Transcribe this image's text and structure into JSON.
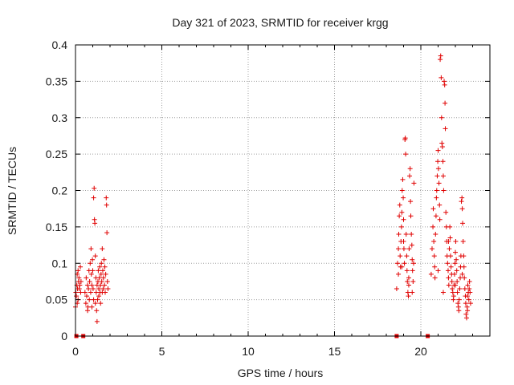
{
  "chart_data": {
    "type": "scatter",
    "title": "Day 321 of 2023, SRMTID for receiver krgg",
    "xlabel": "GPS time / hours",
    "ylabel": "SRMTID / TECUs",
    "xlim": [
      0,
      24
    ],
    "ylim": [
      0,
      0.4
    ],
    "xticks": [
      0,
      5,
      10,
      15,
      20
    ],
    "xtick_labels": [
      "0",
      "5",
      "10",
      "15",
      "20"
    ],
    "yticks": [
      0,
      0.05,
      0.1,
      0.15,
      0.2,
      0.25,
      0.3,
      0.35,
      0.4
    ],
    "ytick_labels": [
      "0",
      "0.05",
      "0.1",
      "0.15",
      "0.2",
      "0.25",
      "0.3",
      "0.35",
      "0.4"
    ],
    "grid": true,
    "marker": "+",
    "color": "#e00000",
    "series": [
      {
        "name": "krgg",
        "points": [
          [
            0.0,
            0.04
          ],
          [
            0.02,
            0.06
          ],
          [
            0.05,
            0.055
          ],
          [
            0.08,
            0.07
          ],
          [
            0.1,
            0.085
          ],
          [
            0.12,
            0.065
          ],
          [
            0.15,
            0.09
          ],
          [
            0.18,
            0.075
          ],
          [
            0.2,
            0.08
          ],
          [
            0.22,
            0.065
          ],
          [
            0.25,
            0.07
          ],
          [
            0.28,
            0.095
          ],
          [
            0.3,
            0.06
          ],
          [
            0.32,
            0.075
          ],
          [
            0.1,
            0.045
          ],
          [
            0.15,
            0.05
          ],
          [
            0.55,
            0.06
          ],
          [
            0.6,
            0.045
          ],
          [
            0.62,
            0.08
          ],
          [
            0.65,
            0.055
          ],
          [
            0.7,
            0.07
          ],
          [
            0.72,
            0.04
          ],
          [
            0.75,
            0.065
          ],
          [
            0.78,
            0.09
          ],
          [
            0.8,
            0.05
          ],
          [
            0.82,
            0.075
          ],
          [
            0.85,
            0.1
          ],
          [
            0.88,
            0.06
          ],
          [
            0.9,
            0.12
          ],
          [
            0.92,
            0.085
          ],
          [
            0.95,
            0.07
          ],
          [
            0.98,
            0.105
          ],
          [
            1.0,
            0.09
          ],
          [
            1.02,
            0.065
          ],
          [
            1.05,
            0.19
          ],
          [
            1.08,
            0.203
          ],
          [
            1.1,
            0.16
          ],
          [
            1.12,
            0.155
          ],
          [
            1.15,
            0.11
          ],
          [
            1.18,
            0.08
          ],
          [
            1.2,
            0.06
          ],
          [
            1.22,
            0.035
          ],
          [
            1.25,
            0.02
          ],
          [
            1.28,
            0.05
          ],
          [
            1.3,
            0.075
          ],
          [
            1.32,
            0.09
          ],
          [
            1.35,
            0.065
          ],
          [
            1.38,
            0.08
          ],
          [
            1.4,
            0.095
          ],
          [
            1.42,
            0.06
          ],
          [
            1.45,
            0.07
          ],
          [
            1.48,
            0.085
          ],
          [
            1.5,
            0.1
          ],
          [
            1.52,
            0.075
          ],
          [
            1.55,
            0.12
          ],
          [
            1.58,
            0.09
          ],
          [
            1.6,
            0.065
          ],
          [
            1.62,
            0.08
          ],
          [
            1.65,
            0.105
          ],
          [
            1.68,
            0.07
          ],
          [
            1.7,
            0.095
          ],
          [
            1.72,
            0.06
          ],
          [
            1.75,
            0.085
          ],
          [
            1.78,
            0.19
          ],
          [
            1.8,
            0.18
          ],
          [
            1.82,
            0.142
          ],
          [
            1.85,
            0.075
          ],
          [
            1.88,
            0.065
          ],
          [
            0.95,
            0.04
          ],
          [
            1.05,
            0.05
          ],
          [
            1.15,
            0.045
          ],
          [
            1.35,
            0.055
          ],
          [
            1.45,
            0.045
          ],
          [
            0.7,
            0.035
          ],
          [
            1.25,
            0.07
          ],
          [
            1.55,
            0.06
          ],
          [
            18.6,
            0.065
          ],
          [
            18.65,
            0.1
          ],
          [
            18.7,
            0.12
          ],
          [
            18.72,
            0.14
          ],
          [
            18.75,
            0.165
          ],
          [
            18.78,
            0.18
          ],
          [
            18.8,
            0.11
          ],
          [
            18.82,
            0.095
          ],
          [
            18.85,
            0.13
          ],
          [
            18.88,
            0.15
          ],
          [
            18.9,
            0.17
          ],
          [
            18.92,
            0.2
          ],
          [
            18.95,
            0.215
          ],
          [
            18.98,
            0.19
          ],
          [
            19.0,
            0.16
          ],
          [
            19.02,
            0.12
          ],
          [
            19.05,
            0.1
          ],
          [
            19.08,
            0.27
          ],
          [
            19.1,
            0.272
          ],
          [
            19.12,
            0.25
          ],
          [
            19.15,
            0.14
          ],
          [
            19.18,
            0.11
          ],
          [
            19.2,
            0.09
          ],
          [
            19.22,
            0.075
          ],
          [
            19.25,
            0.06
          ],
          [
            19.28,
            0.055
          ],
          [
            19.3,
            0.08
          ],
          [
            19.32,
            0.12
          ],
          [
            19.35,
            0.22
          ],
          [
            19.38,
            0.23
          ],
          [
            19.4,
            0.185
          ],
          [
            19.42,
            0.165
          ],
          [
            19.45,
            0.14
          ],
          [
            19.48,
            0.125
          ],
          [
            19.5,
            0.105
          ],
          [
            19.52,
            0.09
          ],
          [
            19.55,
            0.075
          ],
          [
            19.58,
            0.1
          ],
          [
            19.6,
            0.21
          ],
          [
            18.7,
            0.085
          ],
          [
            19.0,
            0.13
          ],
          [
            19.3,
            0.07
          ],
          [
            19.5,
            0.06
          ],
          [
            18.9,
            0.095
          ],
          [
            20.6,
            0.085
          ],
          [
            20.65,
            0.12
          ],
          [
            20.7,
            0.15
          ],
          [
            20.72,
            0.175
          ],
          [
            20.75,
            0.13
          ],
          [
            20.78,
            0.11
          ],
          [
            20.8,
            0.095
          ],
          [
            20.82,
            0.08
          ],
          [
            20.85,
            0.14
          ],
          [
            20.88,
            0.165
          ],
          [
            20.9,
            0.19
          ],
          [
            20.92,
            0.2
          ],
          [
            20.95,
            0.22
          ],
          [
            20.98,
            0.24
          ],
          [
            21.0,
            0.255
          ],
          [
            21.02,
            0.23
          ],
          [
            21.05,
            0.21
          ],
          [
            21.08,
            0.18
          ],
          [
            21.1,
            0.16
          ],
          [
            21.12,
            0.38
          ],
          [
            21.15,
            0.385
          ],
          [
            21.18,
            0.355
          ],
          [
            21.2,
            0.3
          ],
          [
            21.22,
            0.265
          ],
          [
            21.25,
            0.26
          ],
          [
            21.28,
            0.24
          ],
          [
            21.3,
            0.22
          ],
          [
            21.32,
            0.2
          ],
          [
            21.35,
            0.35
          ],
          [
            21.38,
            0.345
          ],
          [
            21.4,
            0.32
          ],
          [
            21.42,
            0.285
          ],
          [
            21.45,
            0.17
          ],
          [
            21.48,
            0.15
          ],
          [
            21.5,
            0.13
          ],
          [
            21.52,
            0.11
          ],
          [
            21.55,
            0.1
          ],
          [
            21.58,
            0.09
          ],
          [
            21.6,
            0.08
          ],
          [
            21.62,
            0.07
          ],
          [
            21.65,
            0.12
          ],
          [
            21.68,
            0.15
          ],
          [
            21.7,
            0.135
          ],
          [
            21.72,
            0.11
          ],
          [
            21.75,
            0.095
          ],
          [
            21.78,
            0.085
          ],
          [
            21.8,
            0.075
          ],
          [
            21.82,
            0.065
          ],
          [
            21.85,
            0.06
          ],
          [
            21.88,
            0.05
          ],
          [
            21.9,
            0.055
          ],
          [
            21.92,
            0.07
          ],
          [
            21.95,
            0.085
          ],
          [
            21.98,
            0.1
          ],
          [
            22.0,
            0.115
          ],
          [
            22.02,
            0.13
          ],
          [
            22.05,
            0.105
          ],
          [
            22.08,
            0.09
          ],
          [
            22.1,
            0.075
          ],
          [
            22.12,
            0.06
          ],
          [
            22.15,
            0.045
          ],
          [
            22.18,
            0.04
          ],
          [
            22.2,
            0.035
          ],
          [
            22.22,
            0.05
          ],
          [
            22.25,
            0.065
          ],
          [
            22.28,
            0.08
          ],
          [
            22.3,
            0.095
          ],
          [
            22.32,
            0.11
          ],
          [
            22.35,
            0.185
          ],
          [
            22.38,
            0.19
          ],
          [
            22.4,
            0.175
          ],
          [
            22.42,
            0.155
          ],
          [
            22.45,
            0.13
          ],
          [
            22.48,
            0.11
          ],
          [
            22.5,
            0.095
          ],
          [
            22.52,
            0.08
          ],
          [
            22.55,
            0.065
          ],
          [
            22.58,
            0.055
          ],
          [
            22.6,
            0.045
          ],
          [
            22.62,
            0.03
          ],
          [
            22.65,
            0.025
          ],
          [
            22.68,
            0.04
          ],
          [
            22.7,
            0.055
          ],
          [
            22.72,
            0.07
          ],
          [
            22.75,
            0.06
          ],
          [
            22.78,
            0.05
          ],
          [
            22.8,
            0.065
          ],
          [
            22.82,
            0.075
          ],
          [
            22.85,
            0.06
          ],
          [
            22.88,
            0.045
          ],
          [
            21.0,
            0.09
          ],
          [
            21.3,
            0.06
          ],
          [
            21.6,
            0.13
          ],
          [
            22.0,
            0.07
          ],
          [
            22.4,
            0.085
          ],
          [
            22.7,
            0.035
          ]
        ]
      }
    ],
    "zero_markers_x": [
      0.05,
      0.45,
      18.6,
      20.4
    ]
  }
}
